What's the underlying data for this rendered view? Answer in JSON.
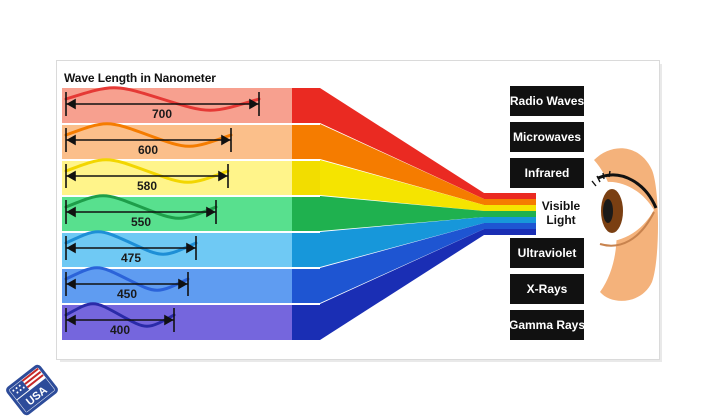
{
  "title": "Wave Length in Nanometer",
  "wavelengths": [
    {
      "nm": "700",
      "color": "#e53935"
    },
    {
      "nm": "600",
      "color": "#f57c00"
    },
    {
      "nm": "580",
      "color": "#f2d600"
    },
    {
      "nm": "550",
      "color": "#1e9e4a"
    },
    {
      "nm": "475",
      "color": "#1e8fd6"
    },
    {
      "nm": "450",
      "color": "#2b63d9"
    },
    {
      "nm": "400",
      "color": "#2a2aa8"
    }
  ],
  "spectrum_boxes": {
    "radio_waves": "Radio Waves",
    "microwaves": "Microwaves",
    "infrared": "Infrared",
    "visible_light_line1": "Visible",
    "visible_light_line2": "Light",
    "ultraviolet": "Ultraviolet",
    "x_rays": "X-Rays",
    "gamma_rays": "Gamma Rays"
  },
  "logo_text": "USA"
}
